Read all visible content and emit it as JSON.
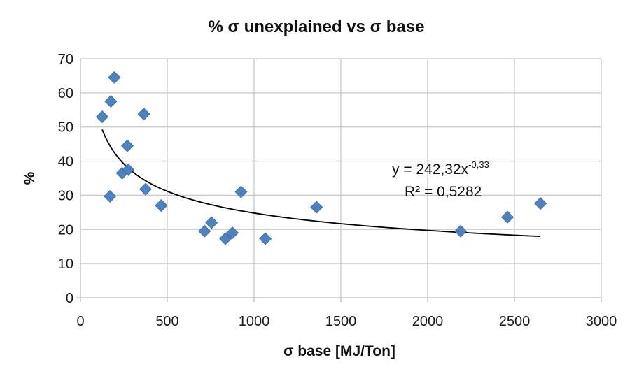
{
  "chart_data": {
    "type": "scatter",
    "title": "% σ unexplained vs σ base",
    "xlabel": "σ base [MJ/Ton]",
    "ylabel": "%",
    "xlim": [
      0,
      3000
    ],
    "ylim": [
      0,
      70
    ],
    "x_ticks": [
      0,
      500,
      1000,
      1500,
      2000,
      2500,
      3000
    ],
    "y_ticks": [
      0,
      10,
      20,
      30,
      40,
      50,
      60,
      70
    ],
    "grid": true,
    "marker": "diamond",
    "point_color": "#4f81bd",
    "points": [
      {
        "x": 125,
        "y": 53
      },
      {
        "x": 175,
        "y": 57.5
      },
      {
        "x": 195,
        "y": 64.5
      },
      {
        "x": 170,
        "y": 29.7
      },
      {
        "x": 240,
        "y": 36.5
      },
      {
        "x": 270,
        "y": 44.5
      },
      {
        "x": 275,
        "y": 37.5
      },
      {
        "x": 365,
        "y": 53.8
      },
      {
        "x": 375,
        "y": 31.8
      },
      {
        "x": 465,
        "y": 27
      },
      {
        "x": 715,
        "y": 19.5
      },
      {
        "x": 755,
        "y": 22
      },
      {
        "x": 835,
        "y": 17.3
      },
      {
        "x": 875,
        "y": 19
      },
      {
        "x": 925,
        "y": 31
      },
      {
        "x": 1065,
        "y": 17.3
      },
      {
        "x": 1360,
        "y": 26.5
      },
      {
        "x": 2190,
        "y": 19.5
      },
      {
        "x": 2460,
        "y": 23.6
      },
      {
        "x": 2650,
        "y": 27.6
      }
    ],
    "trendline": {
      "type": "power",
      "a": 242.32,
      "b": -0.33,
      "x_start": 125,
      "x_end": 2650,
      "equation_prefix": "y = 242,32x",
      "equation_exponent": "-0,33",
      "r_squared": "R² = 0,5282"
    }
  }
}
